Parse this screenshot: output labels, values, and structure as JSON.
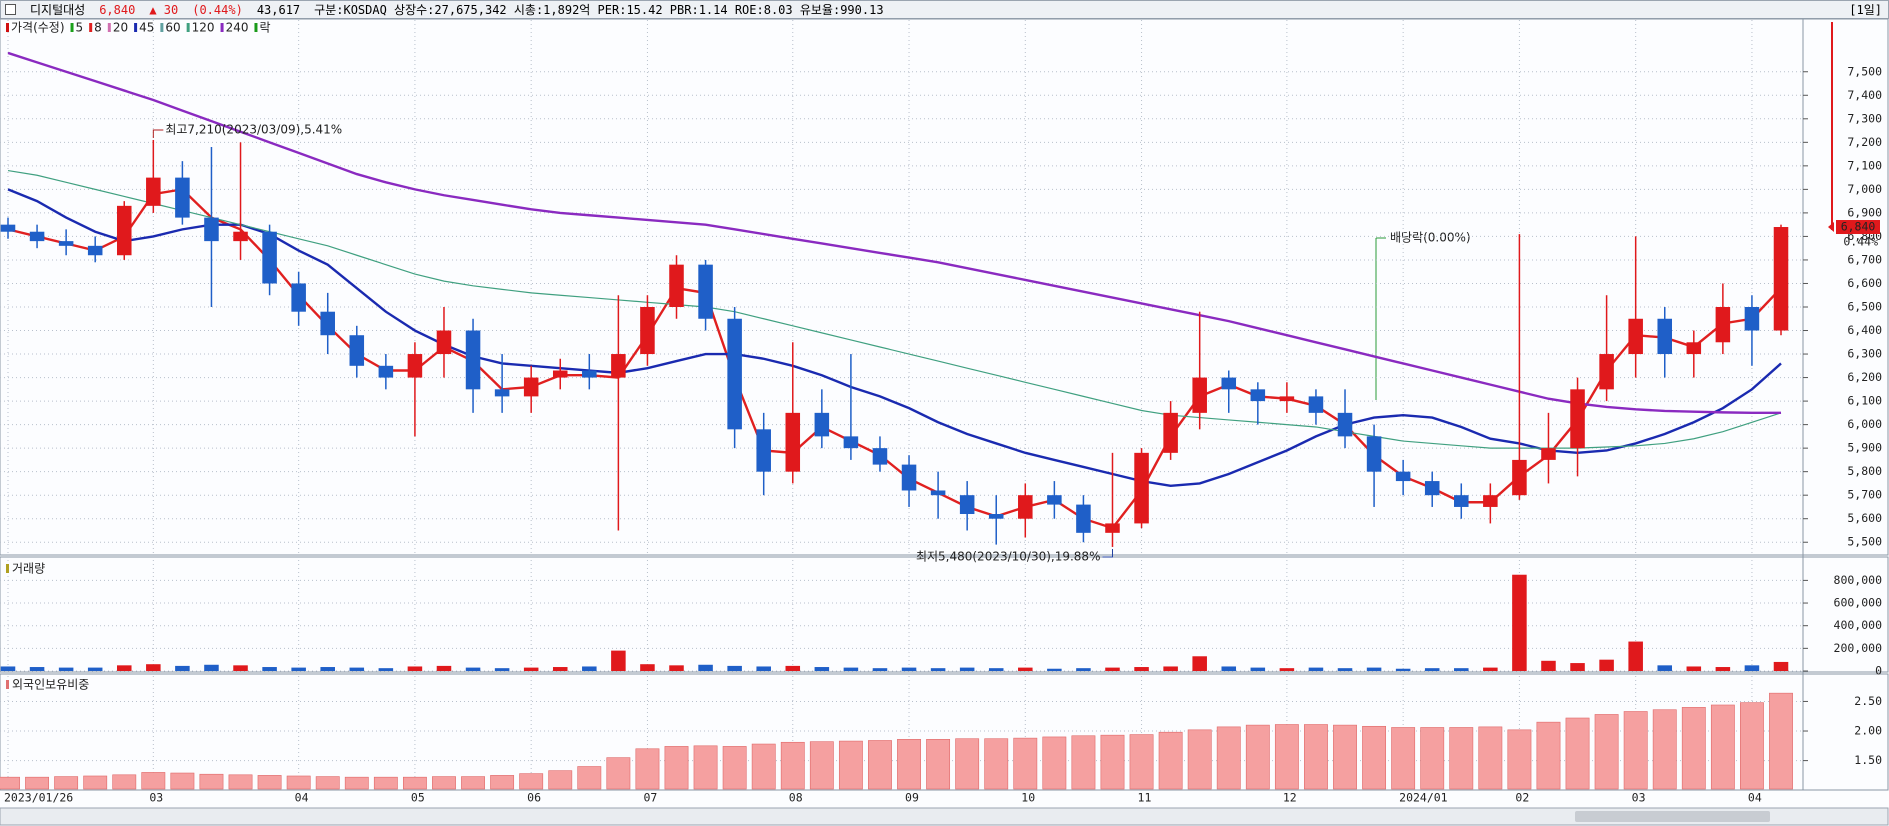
{
  "header": {
    "name": "디지털대성",
    "price": "6,840",
    "change": "▲ 30",
    "change_pct": "(0.44%)",
    "volume": "43,617",
    "info": "구분:KOSDAQ 상장수:27,675,342 시총:1,892억 PER:15.42 PBR:1.14 ROE:8.03 유보율:990.13",
    "period": "[1일]",
    "current_change": "0.44%"
  },
  "chart_data": [
    {
      "type": "candlestick",
      "up_color": "#e0191c",
      "down_color": "#1f5fc8",
      "grid": true,
      "categories": [
        "2023/01/26",
        null,
        null,
        null,
        null,
        "03",
        null,
        null,
        null,
        null,
        "04",
        null,
        null,
        null,
        "05",
        null,
        null,
        null,
        "06",
        null,
        null,
        null,
        "07",
        null,
        null,
        null,
        null,
        "08",
        null,
        null,
        null,
        "09",
        null,
        null,
        null,
        "10",
        null,
        null,
        null,
        "11",
        null,
        null,
        null,
        null,
        "12",
        null,
        null,
        null,
        "2024/01",
        null,
        null,
        null,
        "02",
        null,
        null,
        null,
        "03",
        null,
        null,
        null,
        "04",
        null
      ],
      "open": [
        6850,
        6820,
        6780,
        6760,
        6720,
        6930,
        7050,
        6880,
        6780,
        6820,
        6600,
        6480,
        6380,
        6250,
        6200,
        6300,
        6400,
        6150,
        6120,
        6200,
        6230,
        6200,
        6300,
        6500,
        6680,
        6450,
        5980,
        5800,
        6050,
        5950,
        5900,
        5830,
        5720,
        5700,
        5620,
        5600,
        5700,
        5660,
        5540,
        5580,
        5880,
        6050,
        6200,
        6150,
        6100,
        6120,
        6050,
        5950,
        5800,
        5760,
        5700,
        5650,
        5700,
        5850,
        5900,
        6150,
        6300,
        6450,
        6300,
        6350,
        6500,
        6400
      ],
      "high": [
        6880,
        6850,
        6830,
        6800,
        6950,
        7210,
        7120,
        7180,
        7200,
        6850,
        6650,
        6560,
        6420,
        6300,
        6350,
        6500,
        6450,
        6300,
        6250,
        6280,
        6300,
        6550,
        6550,
        6720,
        6700,
        6500,
        6050,
        6350,
        6150,
        6300,
        5950,
        5870,
        5800,
        5760,
        5700,
        5750,
        5760,
        5700,
        5880,
        5900,
        6100,
        6480,
        6230,
        6180,
        6180,
        6150,
        6150,
        6000,
        5850,
        5800,
        5750,
        5750,
        6810,
        6050,
        6200,
        6550,
        6800,
        6500,
        6400,
        6600,
        6550,
        6850
      ],
      "low": [
        6790,
        6750,
        6720,
        6690,
        6700,
        6900,
        6850,
        6500,
        6700,
        6550,
        6420,
        6300,
        6200,
        6150,
        5950,
        6200,
        6050,
        6050,
        6050,
        6150,
        6150,
        5550,
        6250,
        6450,
        6400,
        5900,
        5700,
        5750,
        5900,
        5850,
        5800,
        5650,
        5600,
        5550,
        5490,
        5520,
        5600,
        5500,
        5480,
        5560,
        5850,
        5980,
        6050,
        6000,
        6050,
        6000,
        5900,
        5650,
        5700,
        5650,
        5600,
        5580,
        5680,
        5750,
        5780,
        6100,
        6200,
        6200,
        6200,
        6300,
        6250,
        6380
      ],
      "close": [
        6820,
        6780,
        6760,
        6720,
        6930,
        7050,
        6880,
        6780,
        6820,
        6600,
        6480,
        6380,
        6250,
        6200,
        6300,
        6400,
        6150,
        6120,
        6200,
        6230,
        6200,
        6300,
        6500,
        6680,
        6450,
        5980,
        5800,
        6050,
        5950,
        5900,
        5830,
        5720,
        5700,
        5620,
        5600,
        5700,
        5660,
        5540,
        5580,
        5880,
        6050,
        6200,
        6150,
        6100,
        6120,
        6050,
        5950,
        5800,
        5760,
        5700,
        5650,
        5700,
        5850,
        5900,
        6150,
        6300,
        6450,
        6300,
        6350,
        6500,
        6400,
        6840
      ],
      "indicators": [
        {
          "name": "가격(수정)",
          "color": "#d01010"
        },
        {
          "name": "5",
          "color": "#1aa01a"
        },
        {
          "name": "8",
          "color": "#e02020",
          "values": [
            6830,
            6800,
            6770,
            6740,
            6800,
            6980,
            7000,
            6880,
            6830,
            6700,
            6550,
            6420,
            6300,
            6230,
            6230,
            6330,
            6270,
            6150,
            6160,
            6210,
            6210,
            6200,
            6380,
            6580,
            6560,
            6200,
            5890,
            5880,
            5990,
            5930,
            5870,
            5770,
            5710,
            5650,
            5610,
            5650,
            5680,
            5600,
            5560,
            5720,
            5950,
            6120,
            6170,
            6120,
            6110,
            6080,
            6000,
            5870,
            5780,
            5730,
            5670,
            5670,
            5780,
            5870,
            6020,
            6230,
            6380,
            6370,
            6330,
            6430,
            6450,
            6580
          ]
        },
        {
          "name": "20",
          "color": "#d070b0"
        },
        {
          "name": "45",
          "color": "#1a2ab0",
          "values": [
            7000,
            6950,
            6880,
            6820,
            6780,
            6800,
            6830,
            6850,
            6850,
            6810,
            6740,
            6680,
            6580,
            6480,
            6400,
            6340,
            6290,
            6260,
            6250,
            6240,
            6230,
            6220,
            6240,
            6270,
            6300,
            6300,
            6280,
            6250,
            6210,
            6160,
            6120,
            6070,
            6010,
            5960,
            5920,
            5880,
            5850,
            5820,
            5790,
            5760,
            5740,
            5750,
            5790,
            5840,
            5890,
            5950,
            6000,
            6030,
            6040,
            6030,
            5990,
            5940,
            5920,
            5890,
            5880,
            5890,
            5920,
            5960,
            6010,
            6070,
            6150,
            6260
          ]
        },
        {
          "name": "60",
          "color": "#60a0a0"
        },
        {
          "name": "120",
          "color": "#40a080",
          "values": [
            7080,
            7060,
            7030,
            7000,
            6970,
            6940,
            6910,
            6880,
            6850,
            6820,
            6790,
            6760,
            6720,
            6680,
            6640,
            6610,
            6590,
            6575,
            6560,
            6550,
            6540,
            6530,
            6520,
            6510,
            6500,
            6480,
            6450,
            6420,
            6390,
            6360,
            6330,
            6300,
            6270,
            6240,
            6210,
            6180,
            6150,
            6120,
            6090,
            6060,
            6040,
            6030,
            6020,
            6010,
            6000,
            5990,
            5970,
            5950,
            5930,
            5920,
            5910,
            5900,
            5900,
            5900,
            5900,
            5905,
            5910,
            5920,
            5940,
            5970,
            6010,
            6050
          ]
        },
        {
          "name": "240",
          "color": "#8a2ac0",
          "values": [
            7580,
            7540,
            7500,
            7460,
            7420,
            7380,
            7335,
            7290,
            7245,
            7200,
            7155,
            7110,
            7065,
            7030,
            7000,
            6975,
            6955,
            6935,
            6915,
            6900,
            6890,
            6880,
            6870,
            6860,
            6850,
            6830,
            6810,
            6790,
            6770,
            6750,
            6730,
            6710,
            6690,
            6665,
            6640,
            6615,
            6590,
            6565,
            6540,
            6515,
            6490,
            6465,
            6440,
            6410,
            6380,
            6350,
            6320,
            6290,
            6260,
            6230,
            6200,
            6170,
            6140,
            6110,
            6090,
            6075,
            6065,
            6058,
            6055,
            6052,
            6050,
            6050
          ]
        },
        {
          "name": "락",
          "color": "#1a9a1a"
        }
      ],
      "annotations": {
        "high": "최고7,210(2023/03/09),5.41%",
        "low": "최저5,480(2023/10/30),19.88%",
        "ex_dividend": "배당락(0.00%)"
      },
      "ylim": [
        5450,
        7720
      ],
      "yticks": [
        {
          "value": 5500,
          "label": "5,500"
        },
        {
          "value": 5600,
          "label": "5,600"
        },
        {
          "value": 5700,
          "label": "5,700"
        },
        {
          "value": 5800,
          "label": "5,800"
        },
        {
          "value": 5900,
          "label": "5,900"
        },
        {
          "value": 6000,
          "label": "6,000"
        },
        {
          "value": 6100,
          "label": "6,100"
        },
        {
          "value": 6200,
          "label": "6,200"
        },
        {
          "value": 6300,
          "label": "6,300"
        },
        {
          "value": 6400,
          "label": "6,400"
        },
        {
          "value": 6500,
          "label": "6,500"
        },
        {
          "value": 6600,
          "label": "6,600"
        },
        {
          "value": 6700,
          "label": "6,700"
        },
        {
          "value": 6800,
          "label": "6,800"
        },
        {
          "value": 6900,
          "label": "6,900"
        },
        {
          "value": 7000,
          "label": "7,000"
        },
        {
          "value": 7100,
          "label": "7,100"
        },
        {
          "value": 7200,
          "label": "7,200"
        },
        {
          "value": 7300,
          "label": "7,300"
        },
        {
          "value": 7400,
          "label": "7,400"
        },
        {
          "value": 7500,
          "label": "7,500"
        }
      ]
    },
    {
      "type": "bar",
      "title": "거래량",
      "title_color": "#b0a020",
      "grid": true,
      "values": [
        40000,
        35000,
        30000,
        30000,
        50000,
        60000,
        45000,
        55000,
        50000,
        35000,
        30000,
        35000,
        30000,
        25000,
        40000,
        45000,
        30000,
        25000,
        30000,
        35000,
        40000,
        180000,
        60000,
        50000,
        55000,
        45000,
        40000,
        45000,
        35000,
        30000,
        25000,
        30000,
        25000,
        30000,
        25000,
        30000,
        20000,
        25000,
        30000,
        35000,
        40000,
        130000,
        40000,
        30000,
        25000,
        30000,
        25000,
        30000,
        20000,
        25000,
        25000,
        30000,
        850000,
        90000,
        70000,
        100000,
        260000,
        50000,
        40000,
        35000,
        50000,
        80000
      ],
      "ylim": [
        0,
        980000
      ],
      "yticks": [
        0,
        {
          "value": 200000,
          "label": "200,000"
        },
        {
          "value": 400000,
          "label": "400,000"
        },
        {
          "value": 600000,
          "label": "600,000"
        },
        {
          "value": 800000,
          "label": "800,000"
        }
      ]
    },
    {
      "type": "bar",
      "title": "외국인보유비중",
      "title_color": "#e07070",
      "color": "#f5a0a0",
      "edge_color": "#e06868",
      "grid": true,
      "values": [
        1.22,
        1.22,
        1.23,
        1.24,
        1.26,
        1.3,
        1.29,
        1.27,
        1.26,
        1.25,
        1.24,
        1.23,
        1.22,
        1.22,
        1.22,
        1.23,
        1.23,
        1.25,
        1.28,
        1.33,
        1.4,
        1.55,
        1.7,
        1.74,
        1.75,
        1.74,
        1.78,
        1.81,
        1.82,
        1.83,
        1.84,
        1.86,
        1.86,
        1.87,
        1.87,
        1.88,
        1.9,
        1.92,
        1.93,
        1.94,
        1.98,
        2.02,
        2.07,
        2.1,
        2.11,
        2.11,
        2.1,
        2.08,
        2.06,
        2.06,
        2.06,
        2.07,
        2.02,
        2.15,
        2.22,
        2.28,
        2.33,
        2.36,
        2.4,
        2.44,
        2.48,
        2.64
      ],
      "ylim": [
        1.02,
        2.93
      ],
      "yticks": [
        {
          "value": 1.5,
          "label": "1.50"
        },
        {
          "value": 2.0,
          "label": "2.00"
        },
        {
          "value": 2.5,
          "label": "2.50"
        }
      ]
    }
  ]
}
